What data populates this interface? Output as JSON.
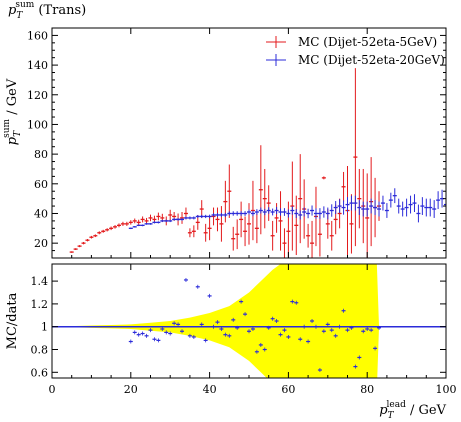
{
  "chart_data": [
    {
      "type": "scatter",
      "title": "p_T^sum (Trans)",
      "title_main": "p",
      "title_sub": "T",
      "title_sup": "sum",
      "title_rest": " (Trans)",
      "ylabel_main": "p",
      "ylabel_sub": "T",
      "ylabel_sup": "sum",
      "ylabel_rest": " / GeV",
      "xlim": [
        0,
        100
      ],
      "ylim": [
        10,
        165
      ],
      "yticks": [
        20,
        40,
        60,
        80,
        100,
        120,
        140,
        160
      ],
      "legend_placement": "top-right",
      "series": [
        {
          "name": "MC (Dijet-52eta-5GeV)",
          "color": "#e31a1c",
          "points": [
            [
              5,
              14,
              0.5
            ],
            [
              6,
              16,
              0.6
            ],
            [
              7,
              18,
              0.7
            ],
            [
              8,
              20,
              0.8
            ],
            [
              9,
              22,
              0.8
            ],
            [
              10,
              24,
              0.9
            ],
            [
              11,
              25,
              0.9
            ],
            [
              12,
              27,
              1.0
            ],
            [
              13,
              28,
              1.0
            ],
            [
              14,
              29,
              1.1
            ],
            [
              15,
              30,
              1.2
            ],
            [
              16,
              31,
              1.2
            ],
            [
              17,
              32,
              1.3
            ],
            [
              18,
              33,
              1.4
            ],
            [
              19,
              33,
              1.4
            ],
            [
              20,
              34,
              1.5
            ],
            [
              21,
              35,
              1.6
            ],
            [
              22,
              34,
              1.8
            ],
            [
              23,
              36,
              2.0
            ],
            [
              24,
              35,
              2.0
            ],
            [
              25,
              37,
              2.2
            ],
            [
              26,
              36,
              2.5
            ],
            [
              27,
              38,
              2.6
            ],
            [
              28,
              37,
              2.8
            ],
            [
              29,
              35,
              3
            ],
            [
              30,
              39,
              3.5
            ],
            [
              31,
              38,
              3
            ],
            [
              32,
              36,
              4
            ],
            [
              33,
              37,
              4
            ],
            [
              34,
              40,
              4
            ],
            [
              35,
              27,
              3
            ],
            [
              36,
              28,
              4
            ],
            [
              37,
              34,
              5
            ],
            [
              38,
              43,
              6
            ],
            [
              39,
              27,
              6
            ],
            [
              40,
              30,
              8
            ],
            [
              41,
              38,
              6
            ],
            [
              42,
              36,
              8
            ],
            [
              43,
              33,
              12
            ],
            [
              44,
              48,
              14
            ],
            [
              45,
              55,
              18
            ],
            [
              46,
              23,
              8
            ],
            [
              47,
              26,
              10
            ],
            [
              48,
              36,
              12
            ],
            [
              49,
              28,
              10
            ],
            [
              50,
              33,
              14
            ],
            [
              51,
              42,
              20
            ],
            [
              52,
              30,
              10
            ],
            [
              53,
              56,
              30
            ],
            [
              54,
              50,
              20
            ],
            [
              55,
              47,
              12
            ],
            [
              56,
              25,
              10
            ],
            [
              57,
              37,
              10
            ],
            [
              58,
              35,
              20
            ],
            [
              59,
              20,
              10
            ],
            [
              60,
              28,
              20
            ],
            [
              61,
              45,
              30
            ],
            [
              62,
              32,
              20
            ],
            [
              63,
              50,
              30
            ],
            [
              64,
              43,
              20
            ],
            [
              65,
              25,
              8
            ],
            [
              66,
              20,
              15
            ],
            [
              67,
              38,
              20
            ],
            [
              68,
              26,
              15
            ],
            [
              69,
              64,
              1
            ],
            [
              70,
              33,
              10
            ],
            [
              71,
              25,
              10
            ],
            [
              72,
              36,
              10
            ],
            [
              73,
              40,
              10
            ],
            [
              74,
              58,
              10
            ],
            [
              75,
              42,
              30
            ],
            [
              76,
              33,
              20
            ],
            [
              77,
              78,
              60
            ],
            [
              78,
              50,
              20
            ],
            [
              79,
              45,
              25
            ],
            [
              80,
              37,
              30
            ],
            [
              81,
              48,
              30
            ],
            [
              82,
              44,
              20
            ],
            [
              83,
              45,
              10
            ]
          ]
        },
        {
          "name": "MC (Dijet-52eta-20GeV)",
          "color": "#2b2bd9",
          "points": [
            [
              20,
              30,
              0.5
            ],
            [
              21,
              31,
              0.5
            ],
            [
              22,
              32,
              0.5
            ],
            [
              23,
              32,
              0.6
            ],
            [
              24,
              33,
              0.6
            ],
            [
              25,
              33,
              0.6
            ],
            [
              26,
              34,
              0.7
            ],
            [
              27,
              34,
              0.7
            ],
            [
              28,
              35,
              0.7
            ],
            [
              29,
              35,
              0.8
            ],
            [
              30,
              35,
              0.8
            ],
            [
              31,
              36,
              0.8
            ],
            [
              32,
              36,
              0.9
            ],
            [
              33,
              36,
              0.9
            ],
            [
              34,
              37,
              0.9
            ],
            [
              35,
              37,
              1.0
            ],
            [
              36,
              37,
              1.0
            ],
            [
              37,
              38,
              1.0
            ],
            [
              38,
              38,
              1.1
            ],
            [
              39,
              38,
              1.1
            ],
            [
              40,
              38,
              1.2
            ],
            [
              41,
              39,
              1.2
            ],
            [
              42,
              39,
              1.3
            ],
            [
              43,
              39,
              1.3
            ],
            [
              44,
              39,
              1.4
            ],
            [
              45,
              40,
              1.4
            ],
            [
              46,
              40,
              1.5
            ],
            [
              47,
              40,
              1.5
            ],
            [
              48,
              40,
              1.6
            ],
            [
              49,
              40,
              1.6
            ],
            [
              50,
              41,
              1.7
            ],
            [
              51,
              40,
              1.8
            ],
            [
              52,
              41,
              1.9
            ],
            [
              53,
              42,
              2.0
            ],
            [
              54,
              41,
              2.1
            ],
            [
              55,
              42,
              2.2
            ],
            [
              56,
              41,
              2.3
            ],
            [
              57,
              42,
              2.4
            ],
            [
              58,
              41,
              2.5
            ],
            [
              59,
              41,
              2.6
            ],
            [
              60,
              40,
              2.7
            ],
            [
              61,
              42,
              2.8
            ],
            [
              62,
              40,
              3.0
            ],
            [
              63,
              39,
              3.0
            ],
            [
              64,
              41,
              3.0
            ],
            [
              65,
              40,
              3.2
            ],
            [
              66,
              42,
              3.4
            ],
            [
              67,
              40,
              3.5
            ],
            [
              68,
              40,
              3.6
            ],
            [
              69,
              41,
              3.8
            ],
            [
              70,
              40,
              4.0
            ],
            [
              71,
              42,
              4.2
            ],
            [
              72,
              44,
              4.4
            ],
            [
              73,
              45,
              4.6
            ],
            [
              74,
              44,
              4.8
            ],
            [
              75,
              46,
              5
            ],
            [
              76,
              47,
              5
            ],
            [
              77,
              47,
              5
            ],
            [
              78,
              44,
              5
            ],
            [
              79,
              43,
              5
            ],
            [
              80,
              43,
              5
            ],
            [
              81,
              45,
              5
            ],
            [
              82,
              44,
              5
            ],
            [
              83,
              43,
              5
            ],
            [
              84,
              47,
              5
            ],
            [
              85,
              42,
              5
            ],
            [
              86,
              49,
              5
            ],
            [
              87,
              52,
              5
            ],
            [
              88,
              45,
              5
            ],
            [
              89,
              43,
              5
            ],
            [
              90,
              44,
              6
            ],
            [
              91,
              46,
              6
            ],
            [
              92,
              47,
              6
            ],
            [
              93,
              40,
              6
            ],
            [
              94,
              45,
              6
            ],
            [
              95,
              44,
              6
            ],
            [
              96,
              44,
              6
            ],
            [
              97,
              43,
              6
            ],
            [
              98,
              49,
              6
            ],
            [
              99,
              50,
              6
            ],
            [
              100,
              46,
              7
            ]
          ]
        }
      ]
    },
    {
      "type": "scatter",
      "xlabel_main": "p",
      "xlabel_sub": "T",
      "xlabel_sup": "lead",
      "xlabel_rest": " / GeV",
      "ylabel": "MC/data",
      "xlim": [
        0,
        100
      ],
      "ylim": [
        0.55,
        1.55
      ],
      "xticks": [
        0,
        20,
        40,
        60,
        80,
        100
      ],
      "yticks": [
        0.6,
        0.8,
        1,
        1.2,
        1.4
      ],
      "reference_line": 1,
      "band_color": "#ffff00",
      "band_halfwidth": [
        [
          0,
          0
        ],
        [
          5,
          0.005
        ],
        [
          10,
          0.01
        ],
        [
          15,
          0.015
        ],
        [
          20,
          0.02
        ],
        [
          25,
          0.035
        ],
        [
          30,
          0.05
        ],
        [
          35,
          0.08
        ],
        [
          40,
          0.12
        ],
        [
          45,
          0.18
        ],
        [
          50,
          0.3
        ],
        [
          53,
          0.4
        ],
        [
          56,
          0.5
        ],
        [
          60,
          0.6
        ],
        [
          65,
          0.7
        ],
        [
          70,
          0.8
        ],
        [
          75,
          0.9
        ],
        [
          82,
          1.0
        ],
        [
          83,
          0
        ]
      ],
      "band_gaps": [
        [
          0,
          5
        ],
        [
          83,
          100
        ]
      ],
      "series": [
        {
          "name": "MC (Dijet-52eta-20GeV)",
          "color": "#2b2bd9",
          "points": [
            [
              20,
              0.87
            ],
            [
              21,
              0.95
            ],
            [
              22,
              0.93
            ],
            [
              23,
              0.94
            ],
            [
              24,
              0.92
            ],
            [
              25,
              0.97
            ],
            [
              26,
              0.89
            ],
            [
              27,
              0.88
            ],
            [
              28,
              0.98
            ],
            [
              29,
              0.95
            ],
            [
              30,
              0.94
            ],
            [
              31,
              1.03
            ],
            [
              32,
              1.02
            ],
            [
              33,
              0.96
            ],
            [
              34,
              1.41
            ],
            [
              35,
              0.92
            ],
            [
              36,
              0.91
            ],
            [
              37,
              1.35
            ],
            [
              38,
              1.02
            ],
            [
              39,
              0.88
            ],
            [
              40,
              1.27
            ],
            [
              41,
              1.0
            ],
            [
              42,
              1.04
            ],
            [
              43,
              0.98
            ],
            [
              44,
              0.93
            ],
            [
              45,
              0.92
            ],
            [
              46,
              1.06
            ],
            [
              47,
              0.99
            ],
            [
              48,
              1.22
            ],
            [
              49,
              1.11
            ],
            [
              50,
              0.96
            ],
            [
              51,
              0.98
            ],
            [
              52,
              0.78
            ],
            [
              53,
              0.84
            ],
            [
              54,
              0.8
            ],
            [
              55,
              0.99
            ],
            [
              56,
              1.07
            ],
            [
              57,
              1.05
            ],
            [
              58,
              0.93
            ],
            [
              59,
              0.97
            ],
            [
              60,
              0.91
            ],
            [
              61,
              1.22
            ],
            [
              62,
              1.21
            ],
            [
              63,
              0.89
            ],
            [
              64,
              1.0
            ],
            [
              65,
              0.87
            ],
            [
              66,
              1.05
            ],
            [
              67,
              1.0
            ],
            [
              68,
              0.62
            ],
            [
              69,
              0.96
            ],
            [
              70,
              1.02
            ],
            [
              71,
              0.97
            ],
            [
              72,
              0.92
            ],
            [
              73,
              1.0
            ],
            [
              74,
              1.14
            ],
            [
              75,
              0.97
            ],
            [
              76,
              0.99
            ],
            [
              77,
              0.65
            ],
            [
              78,
              0.73
            ],
            [
              79,
              0.96
            ],
            [
              80,
              0.98
            ],
            [
              81,
              0.97
            ],
            [
              82,
              0.81
            ],
            [
              83,
              0.99
            ]
          ]
        }
      ]
    }
  ]
}
